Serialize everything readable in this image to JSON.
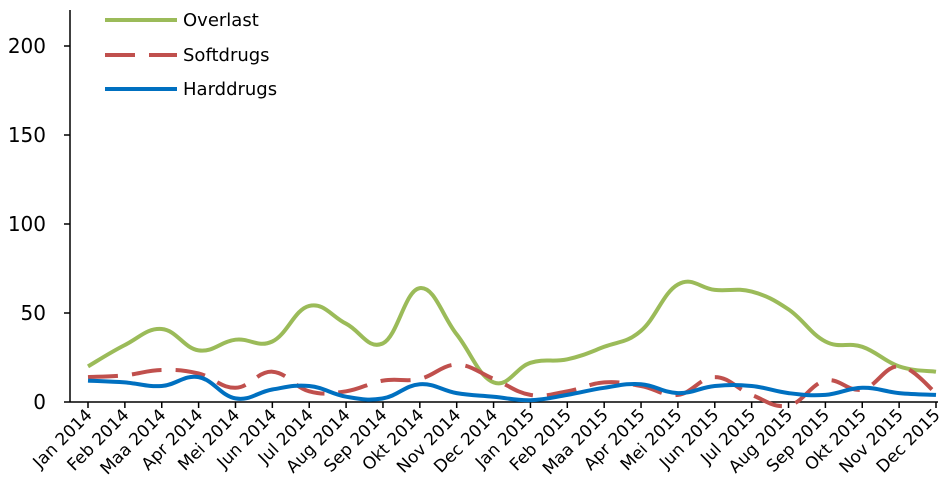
{
  "chart_data": {
    "type": "line",
    "title": "",
    "xlabel": "",
    "ylabel": "",
    "ylim": [
      0,
      200
    ],
    "y_ticks": [
      "0",
      "50",
      "100",
      "150",
      "200"
    ],
    "grid": false,
    "legend_position": "top-left",
    "categories": [
      "Jan 2014",
      "Feb 2014",
      "Maa 2014",
      "Apr 2014",
      "Mei 2014",
      "Jun 2014",
      "Jul 2014",
      "Aug 2014",
      "Sep 2014",
      "Okt 2014",
      "Nov 2014",
      "Dec 2014",
      "Jan 2015",
      "Feb 2015",
      "Maa 2015",
      "Apr 2015",
      "Mei 2015",
      "Jun 2015",
      "Jul 2015",
      "Aug 2015",
      "Sep 2015",
      "Okt 2015",
      "Nov 2015",
      "Dec 2015"
    ],
    "series": [
      {
        "name": "Overlast",
        "color": "#9BBB59",
        "dash": "solid",
        "values": [
          20,
          32,
          41,
          29,
          35,
          34,
          54,
          44,
          33,
          64,
          38,
          11,
          22,
          24,
          31,
          40,
          66,
          63,
          62,
          52,
          34,
          31,
          20,
          17
        ]
      },
      {
        "name": "Softdrugs",
        "color": "#C0504D",
        "dash": "dashed",
        "values": [
          14,
          15,
          18,
          16,
          8,
          17,
          6,
          6,
          12,
          13,
          21,
          13,
          4,
          6,
          11,
          9,
          4,
          14,
          4,
          -2,
          12,
          7,
          20,
          5
        ]
      },
      {
        "name": "Harddrugs",
        "color": "#0070C0",
        "dash": "solid",
        "values": [
          12,
          11,
          9,
          14,
          2,
          7,
          9,
          3,
          2,
          10,
          5,
          3,
          1,
          4,
          8,
          10,
          5,
          9,
          9,
          5,
          4,
          8,
          5,
          4
        ]
      }
    ]
  }
}
